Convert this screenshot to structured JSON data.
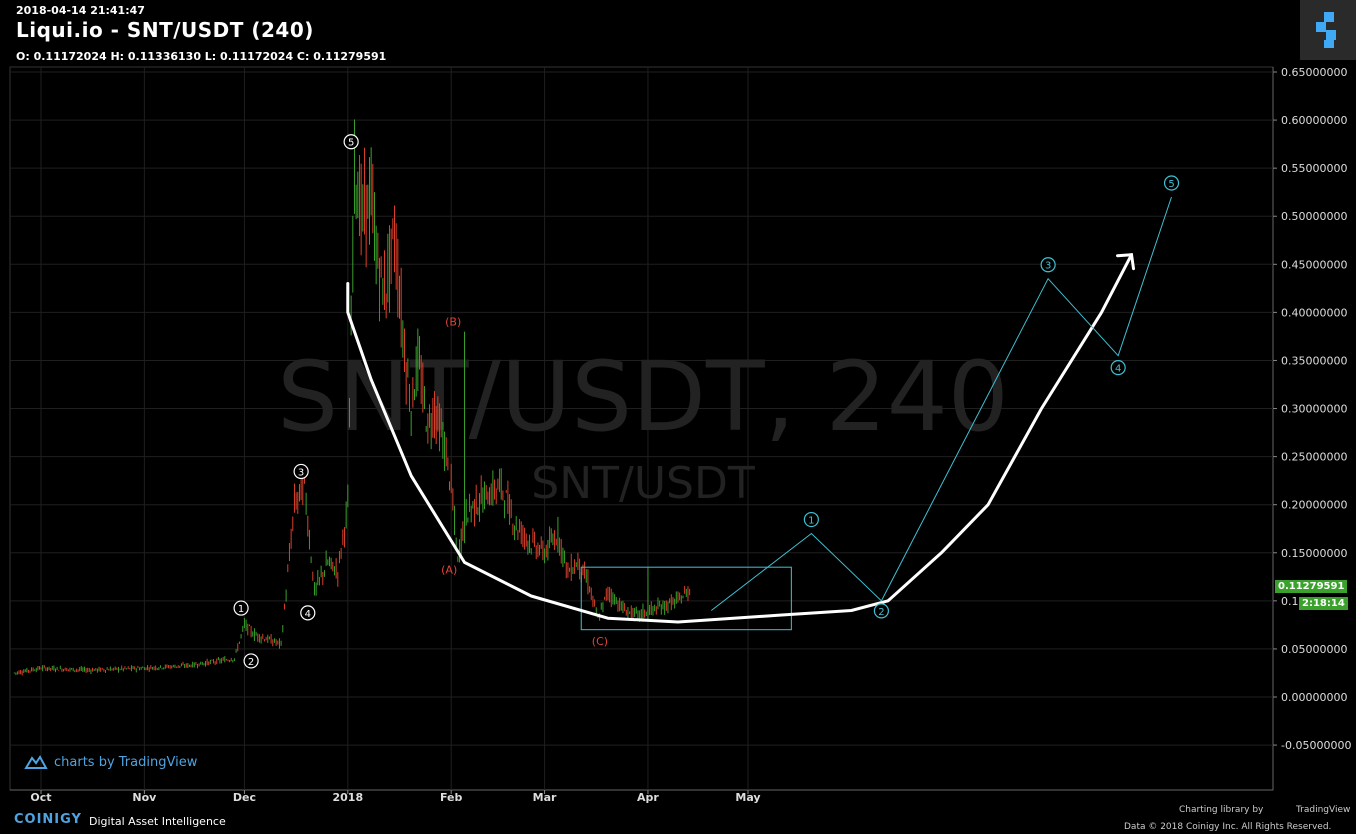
{
  "header": {
    "timestamp": "2018-04-14 21:41:47",
    "title": "Liqui.io - SNT/USDT (240)",
    "ohlc": "O: 0.11172024 H: 0.11336130 L: 0.11172024 C: 0.11279591"
  },
  "watermark": {
    "main": "SNT/USDT, 240",
    "sub": "SNT/USDT"
  },
  "price_tag": {
    "value": "0.11279591",
    "countdown": "2:18:14"
  },
  "footer": {
    "tradingview": "charts by TradingView",
    "brand": "COINIGY",
    "tagline": "Digital Asset Intelligence",
    "charting_library": "Charting library by",
    "tv_small": "TradingView",
    "copyright": "Data © 2018 Coinigy Inc. All Rights Reserved."
  },
  "colors": {
    "accent": "#3fc1d3",
    "up": "#3aa12c",
    "down": "#d9412b",
    "wave_red": "#e0443a"
  },
  "chart_data": {
    "type": "line",
    "title": "Liqui.io - SNT/USDT (240)",
    "ylim": [
      -0.075,
      0.655
    ],
    "y_ticks": [
      "0.65000000",
      "0.60000000",
      "0.55000000",
      "0.50000000",
      "0.45000000",
      "0.40000000",
      "0.35000000",
      "0.30000000",
      "0.25000000",
      "0.20000000",
      "0.15000000",
      "0.10000000",
      "0.05000000",
      "0.00000000",
      "-0.05000000"
    ],
    "x_ticks": [
      "Oct",
      "Nov",
      "Dec",
      "2018",
      "Feb",
      "Mar",
      "Apr",
      "May"
    ],
    "series": [
      {
        "name": "SNT/USDT",
        "x": [
          "2017-09-23",
          "2017-10-01",
          "2017-10-15",
          "2017-11-01",
          "2017-11-15",
          "2017-11-28",
          "2017-12-01",
          "2017-12-04",
          "2017-12-08",
          "2017-12-12",
          "2017-12-16",
          "2017-12-19",
          "2017-12-22",
          "2017-12-26",
          "2017-12-29",
          "2018-01-01",
          "2018-01-03",
          "2018-01-05",
          "2018-01-08",
          "2018-01-10",
          "2018-01-12",
          "2018-01-15",
          "2018-01-18",
          "2018-01-20",
          "2018-01-22",
          "2018-01-25",
          "2018-01-27",
          "2018-01-30",
          "2018-02-01",
          "2018-02-03",
          "2018-02-05",
          "2018-02-08",
          "2018-02-12",
          "2018-02-16",
          "2018-02-20",
          "2018-02-25",
          "2018-03-01",
          "2018-03-05",
          "2018-03-08",
          "2018-03-11",
          "2018-03-14",
          "2018-03-17",
          "2018-03-20",
          "2018-03-25",
          "2018-03-29",
          "2018-04-02",
          "2018-04-06",
          "2018-04-10",
          "2018-04-14"
        ],
        "close": [
          0.025,
          0.03,
          0.028,
          0.03,
          0.033,
          0.04,
          0.075,
          0.065,
          0.06,
          0.055,
          0.2,
          0.22,
          0.11,
          0.14,
          0.13,
          0.2,
          0.56,
          0.5,
          0.52,
          0.45,
          0.42,
          0.48,
          0.36,
          0.3,
          0.35,
          0.28,
          0.3,
          0.26,
          0.22,
          0.14,
          0.19,
          0.2,
          0.21,
          0.22,
          0.18,
          0.16,
          0.15,
          0.17,
          0.13,
          0.14,
          0.12,
          0.08,
          0.11,
          0.09,
          0.085,
          0.09,
          0.095,
          0.1,
          0.113
        ]
      }
    ],
    "annotations": {
      "impulse_waves": [
        {
          "label": "1",
          "x": "2017-11-30",
          "price": 0.08
        },
        {
          "label": "2",
          "x": "2017-12-03",
          "price": 0.05
        },
        {
          "label": "3",
          "x": "2017-12-18",
          "price": 0.22
        },
        {
          "label": "4",
          "x": "2017-12-20",
          "price": 0.1
        },
        {
          "label": "5",
          "x": "2018-01-02",
          "price": 0.565
        }
      ],
      "correction_waves": [
        {
          "label": "(A)",
          "x": "2018-02-01",
          "price": 0.145
        },
        {
          "label": "(B)",
          "x": "2018-02-01",
          "price": 0.38
        },
        {
          "label": "(C)",
          "x": "2018-03-17",
          "price": 0.075
        }
      ],
      "projected_waves": [
        {
          "label": "1",
          "x": "2018-05-20",
          "price": 0.17
        },
        {
          "label": "2",
          "x": "2018-06-10",
          "price": 0.1
        },
        {
          "label": "3",
          "x": "2018-07-30",
          "price": 0.435
        },
        {
          "label": "4",
          "x": "2018-08-20",
          "price": 0.355
        },
        {
          "label": "5",
          "x": "2018-09-05",
          "price": 0.52
        }
      ],
      "range_box": {
        "x0": "2018-03-12",
        "x1": "2018-05-14",
        "price_low": 0.07,
        "price_high": 0.135
      }
    }
  }
}
